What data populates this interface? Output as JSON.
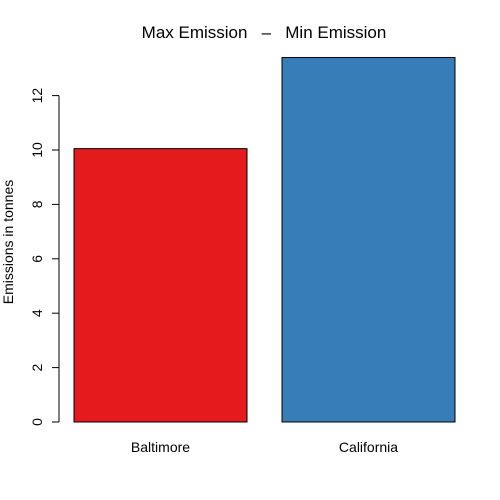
{
  "chart_data": {
    "type": "bar",
    "title": "Max Emission   –   Min Emission",
    "xlabel": "",
    "ylabel": "Emissions in tonnes",
    "categories": [
      "Baltimore",
      "California"
    ],
    "values": [
      10.05,
      13.4
    ],
    "colors": [
      "#E41A1C",
      "#377EB8"
    ],
    "bar_border_color": "#000000",
    "ylim": [
      0,
      13.4
    ],
    "yticks": [
      "0",
      "2",
      "4",
      "6",
      "8",
      "10",
      "12"
    ],
    "ytick_values": [
      0,
      2,
      4,
      6,
      8,
      10,
      12
    ],
    "grid": false,
    "legend": "none"
  }
}
